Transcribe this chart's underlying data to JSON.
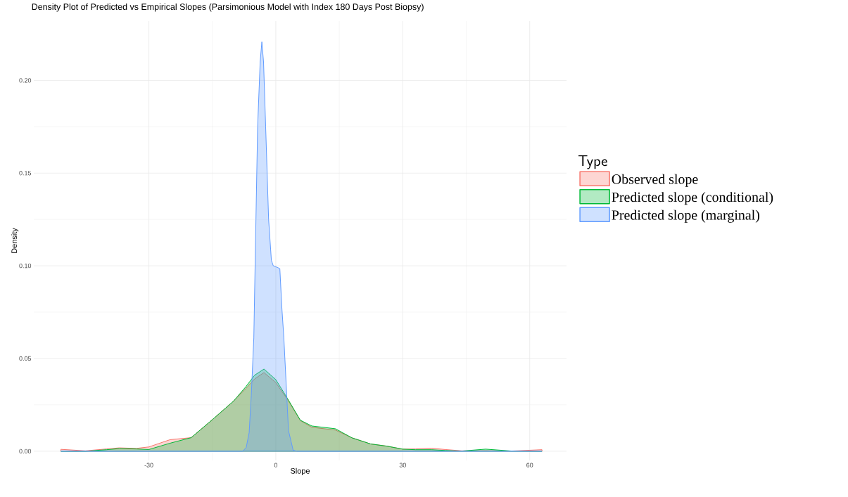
{
  "chart_data": {
    "type": "area",
    "title": "Density Plot of Predicted vs Empirical Slopes (Parsimonious Model with Index 180 Days Post Biopsy)",
    "xlabel": "Slope",
    "ylabel": "Density",
    "legend_title": "Type",
    "legend": "right",
    "grid": true,
    "xlim": [
      -57.2,
      68.7
    ],
    "ylim": [
      -0.005,
      0.232
    ],
    "xticks": [
      -30,
      0,
      30,
      60
    ],
    "yticks": [
      {
        "value": 0,
        "label": "0.00"
      },
      {
        "value": 0.05,
        "label": "0.05"
      },
      {
        "value": 0.1,
        "label": "0.10"
      },
      {
        "value": 0.15,
        "label": "0.15"
      },
      {
        "value": 0.2,
        "label": "0.20"
      }
    ],
    "series": [
      {
        "name": "Observed slope",
        "color": "#f8766d",
        "x": [
          -50.8,
          -45,
          -40,
          -37,
          -33,
          -30,
          -25,
          -20,
          -15,
          -10,
          -7,
          -5,
          -2.8,
          0,
          3,
          5.8,
          8.5,
          14.1,
          18,
          22.4,
          26.3,
          30,
          33,
          36.8,
          40,
          44,
          49.6,
          55.7,
          62.9
        ],
        "values": [
          0.001,
          0.0002,
          0.0012,
          0.0018,
          0.0015,
          0.0023,
          0.0062,
          0.0073,
          0.017,
          0.027,
          0.034,
          0.039,
          0.0424,
          0.037,
          0.027,
          0.0165,
          0.0129,
          0.0114,
          0.0072,
          0.0039,
          0.0027,
          0.0011,
          0.0012,
          0.0016,
          0.0009,
          0.0002,
          0.0003,
          0.0001,
          0.0008
        ]
      },
      {
        "name": "Predicted slope (conditional)",
        "color": "#00ba38",
        "x": [
          -50.8,
          -45,
          -40,
          -37,
          -33,
          -30,
          -25,
          -20,
          -15,
          -10,
          -7,
          -5,
          -2.8,
          0,
          3,
          5.8,
          8.5,
          14.1,
          18,
          22.4,
          26.3,
          30,
          33,
          36.8,
          40,
          44,
          49.6,
          55.7,
          62.9
        ],
        "values": [
          0,
          0,
          0.0008,
          0.0014,
          0.0012,
          0.0009,
          0.0043,
          0.0073,
          0.017,
          0.027,
          0.035,
          0.041,
          0.0443,
          0.0386,
          0.0275,
          0.0167,
          0.0136,
          0.0121,
          0.0072,
          0.0039,
          0.0027,
          0.0011,
          0.0008,
          0.0008,
          0.0004,
          0.0001,
          0.0011,
          0.0001,
          0
        ]
      },
      {
        "name": "Predicted slope (marginal)",
        "color": "#619cff",
        "x": [
          -50.8,
          -10,
          -7.8,
          -7,
          -6.3,
          -5.8,
          -5.2,
          -4.7,
          -4.3,
          -3.7,
          -3.3,
          -2.9,
          -2.4,
          -1.7,
          -1.05,
          -0.6,
          0.5,
          0.95,
          1.45,
          1.9,
          3.0,
          4.1,
          5,
          62.9
        ],
        "values": [
          0,
          0,
          0,
          0.002,
          0.01,
          0.03,
          0.061,
          0.125,
          0.175,
          0.21,
          0.2208,
          0.21,
          0.175,
          0.125,
          0.103,
          0.1,
          0.099,
          0.0985,
          0.0765,
          0.061,
          0.011,
          0.0005,
          0,
          0
        ]
      }
    ]
  }
}
